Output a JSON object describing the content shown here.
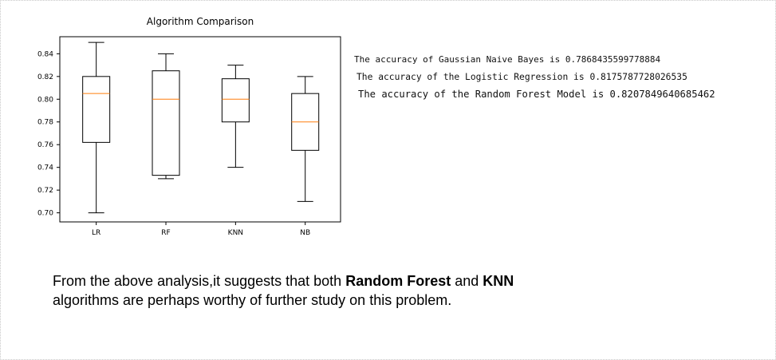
{
  "chart_data": {
    "type": "box",
    "title": "Algorithm Comparison",
    "xlabel": "",
    "ylabel": "",
    "categories": [
      "LR",
      "RF",
      "KNN",
      "NB"
    ],
    "ylim": [
      0.692,
      0.855
    ],
    "yticks": [
      "0.70",
      "0.72",
      "0.74",
      "0.76",
      "0.78",
      "0.80",
      "0.82",
      "0.84"
    ],
    "grid": false,
    "boxes": [
      {
        "category": "LR",
        "whisker_low": 0.7,
        "q1": 0.762,
        "median": 0.805,
        "q3": 0.82,
        "whisker_high": 0.85
      },
      {
        "category": "RF",
        "whisker_low": 0.73,
        "q1": 0.733,
        "median": 0.8,
        "q3": 0.825,
        "whisker_high": 0.84
      },
      {
        "category": "KNN",
        "whisker_low": 0.74,
        "q1": 0.78,
        "median": 0.8,
        "q3": 0.818,
        "whisker_high": 0.83
      },
      {
        "category": "NB",
        "whisker_low": 0.71,
        "q1": 0.755,
        "median": 0.78,
        "q3": 0.805,
        "whisker_high": 0.82
      }
    ],
    "colors": {
      "box": "#000000",
      "median": "#ff7f0e"
    }
  },
  "accuracy_lines": [
    "The accuracy of Gaussian Naive Bayes is 0.7868435599778884",
    "The accuracy of the Logistic Regression is 0.8175787728026535",
    "The accuracy of the Random Forest Model is 0.8207849640685462"
  ],
  "conclusion": {
    "part1": "From the above analysis,it suggests that both ",
    "bold1": "Random Forest",
    "part2": " and ",
    "bold2": "KNN",
    "part3": "algorithms are perhaps worthy of further study on this problem."
  }
}
